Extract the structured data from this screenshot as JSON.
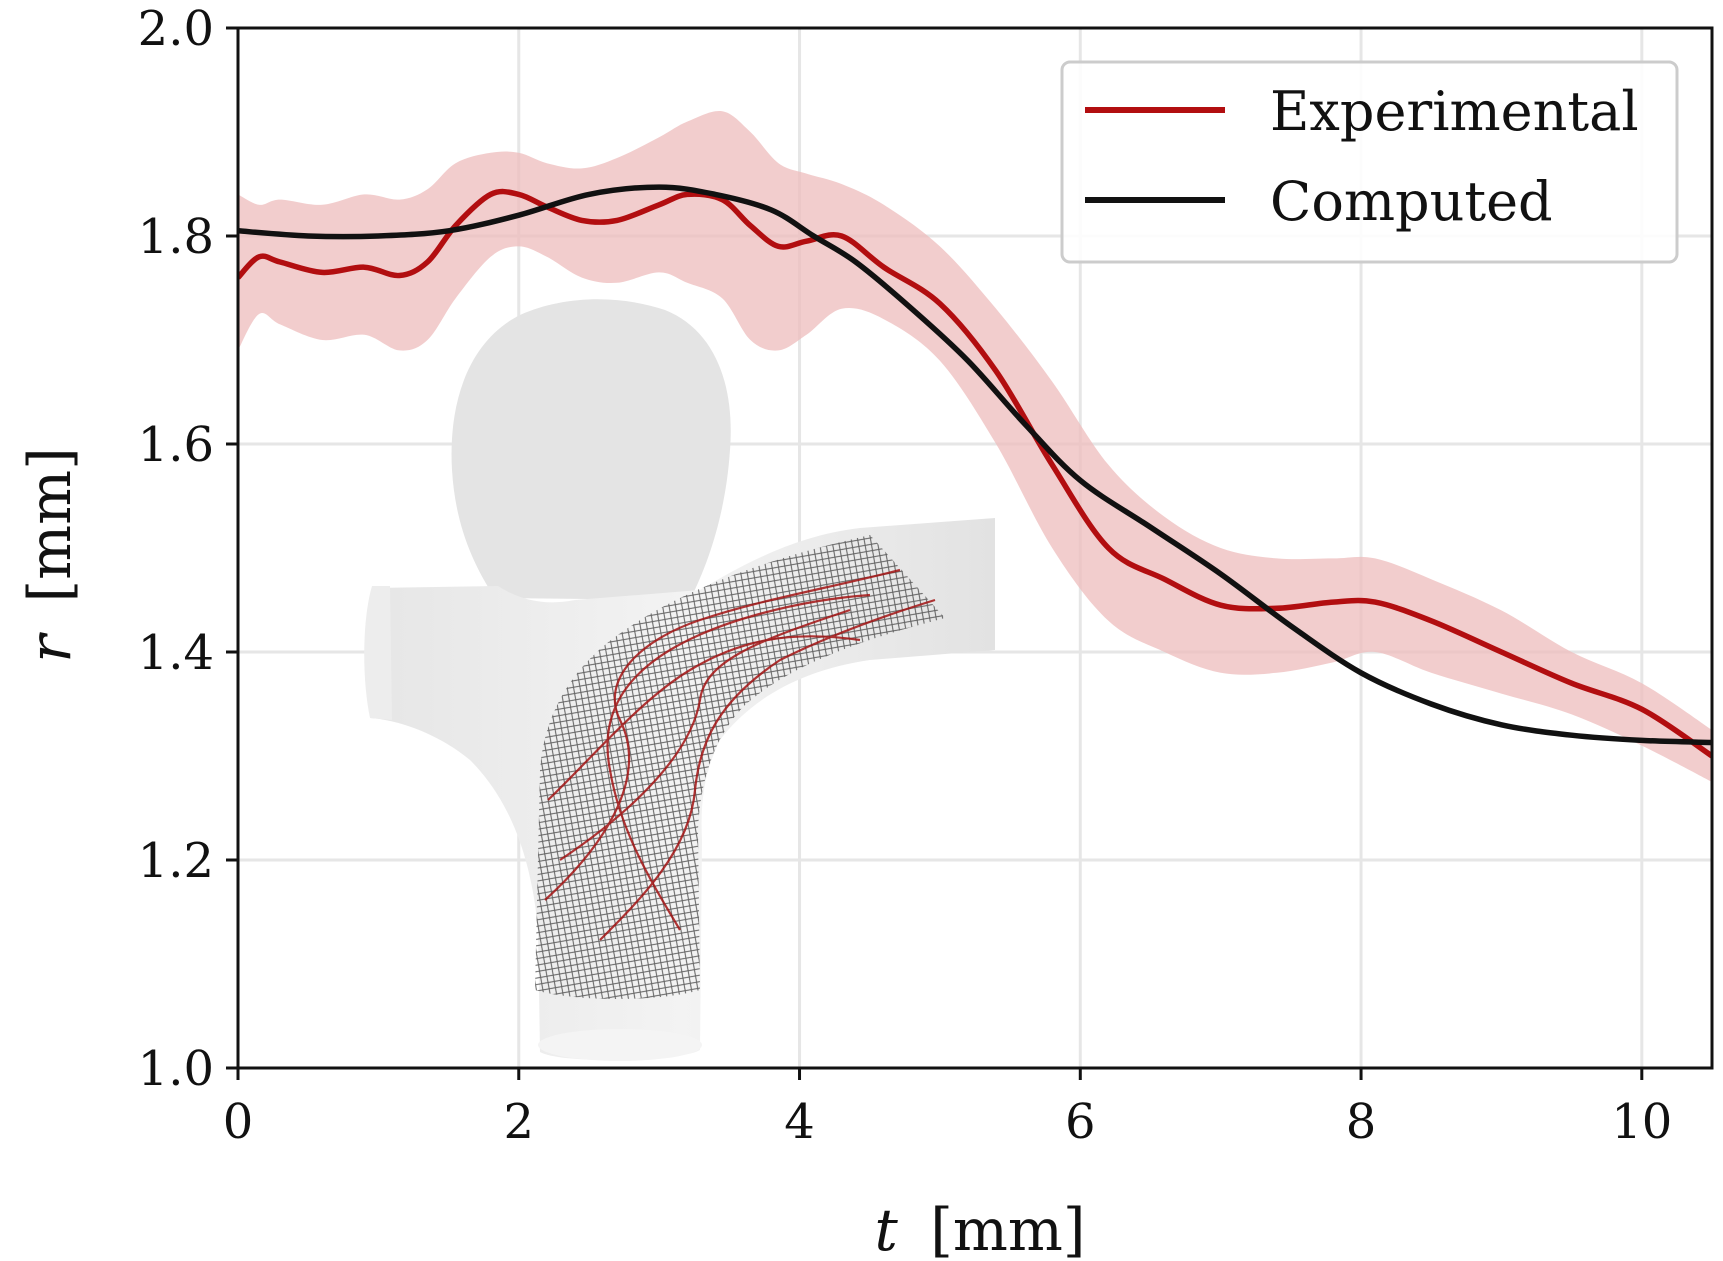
{
  "chart_data": {
    "type": "line",
    "xlabel_var": "t",
    "xlabel_unit": "[mm]",
    "ylabel_var": "r",
    "ylabel_unit": "[mm]",
    "xlim": [
      0,
      10.5
    ],
    "ylim": [
      1.0,
      2.0
    ],
    "xticks": [
      0,
      2,
      4,
      6,
      8,
      10
    ],
    "yticks": [
      1.0,
      1.2,
      1.4,
      1.6,
      1.8,
      2.0
    ],
    "xtick_labels": [
      "0",
      "2",
      "4",
      "6",
      "8",
      "10"
    ],
    "ytick_labels": [
      "1.0",
      "1.2",
      "1.4",
      "1.6",
      "1.8",
      "2.0"
    ],
    "grid": true,
    "legend_position": "top-right",
    "series": [
      {
        "name": "Experimental",
        "color": "#b20e10",
        "band_color": "#eebcbc",
        "x": [
          0,
          0.15,
          0.3,
          0.6,
          0.9,
          1.15,
          1.35,
          1.55,
          1.8,
          2.0,
          2.2,
          2.45,
          2.7,
          3.0,
          3.2,
          3.45,
          3.65,
          3.85,
          4.05,
          4.3,
          4.6,
          5.0,
          5.4,
          5.8,
          6.2,
          6.6,
          7.0,
          7.4,
          7.8,
          8.1,
          8.5,
          9.0,
          9.5,
          10.0,
          10.5
        ],
        "y": [
          1.76,
          1.78,
          1.775,
          1.765,
          1.77,
          1.762,
          1.775,
          1.81,
          1.84,
          1.84,
          1.828,
          1.815,
          1.815,
          1.83,
          1.84,
          1.835,
          1.81,
          1.79,
          1.795,
          1.8,
          1.77,
          1.735,
          1.67,
          1.58,
          1.5,
          1.47,
          1.445,
          1.442,
          1.448,
          1.448,
          1.43,
          1.4,
          1.37,
          1.345,
          1.3
        ],
        "lower": [
          1.69,
          1.725,
          1.715,
          1.7,
          1.705,
          1.69,
          1.7,
          1.74,
          1.78,
          1.79,
          1.78,
          1.76,
          1.755,
          1.765,
          1.755,
          1.74,
          1.7,
          1.69,
          1.705,
          1.73,
          1.72,
          1.68,
          1.6,
          1.5,
          1.43,
          1.4,
          1.38,
          1.38,
          1.39,
          1.4,
          1.38,
          1.36,
          1.34,
          1.31,
          1.275
        ],
        "upper": [
          1.84,
          1.83,
          1.835,
          1.83,
          1.84,
          1.835,
          1.845,
          1.87,
          1.88,
          1.88,
          1.87,
          1.865,
          1.875,
          1.895,
          1.91,
          1.92,
          1.9,
          1.87,
          1.86,
          1.85,
          1.83,
          1.79,
          1.73,
          1.66,
          1.58,
          1.53,
          1.5,
          1.49,
          1.49,
          1.49,
          1.47,
          1.44,
          1.4,
          1.37,
          1.325
        ]
      },
      {
        "name": "Computed",
        "color": "#111111",
        "x": [
          0,
          0.5,
          1.0,
          1.5,
          2.0,
          2.5,
          3.0,
          3.4,
          3.8,
          4.1,
          4.4,
          4.8,
          5.2,
          5.6,
          6.0,
          6.5,
          7.0,
          7.5,
          8.0,
          8.5,
          9.0,
          9.5,
          10.0,
          10.5
        ],
        "y": [
          1.805,
          1.8,
          1.8,
          1.805,
          1.82,
          1.84,
          1.847,
          1.84,
          1.825,
          1.8,
          1.775,
          1.73,
          1.68,
          1.62,
          1.565,
          1.52,
          1.475,
          1.425,
          1.38,
          1.35,
          1.33,
          1.32,
          1.315,
          1.313
        ]
      }
    ]
  }
}
